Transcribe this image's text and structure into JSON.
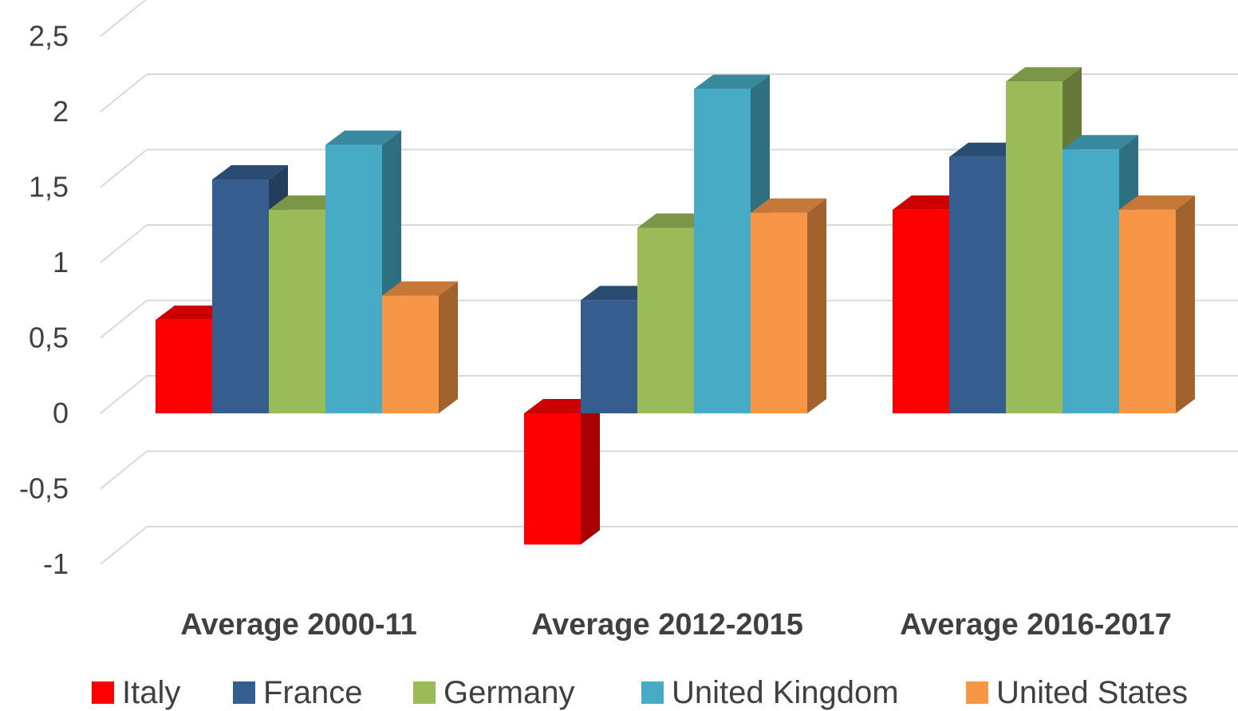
{
  "chart_data": {
    "type": "bar",
    "style": "3d-clustered-column",
    "categories": [
      "Average 2000-11",
      "Average 2012-2015",
      "Average 2016-2017"
    ],
    "series": [
      {
        "name": "Italy",
        "color": "#FF0000",
        "values": [
          0.62,
          -0.87,
          1.35
        ]
      },
      {
        "name": "France",
        "color": "#355E8F",
        "values": [
          1.55,
          0.75,
          1.7
        ]
      },
      {
        "name": "Germany",
        "color": "#9BBB59",
        "values": [
          1.35,
          1.23,
          2.2
        ]
      },
      {
        "name": "United Kingdom",
        "color": "#47ABC6",
        "values": [
          1.78,
          2.15,
          1.75
        ]
      },
      {
        "name": "United States",
        "color": "#F79646",
        "values": [
          0.78,
          1.33,
          1.35
        ]
      }
    ],
    "y_ticks": [
      "2,5",
      "2",
      "1,5",
      "1",
      "0,5",
      "0",
      "-0,5",
      "-1"
    ],
    "ylim": [
      -1,
      2.5
    ],
    "grid": true,
    "legend_position": "bottom",
    "title": "",
    "xlabel": "",
    "ylabel": ""
  }
}
